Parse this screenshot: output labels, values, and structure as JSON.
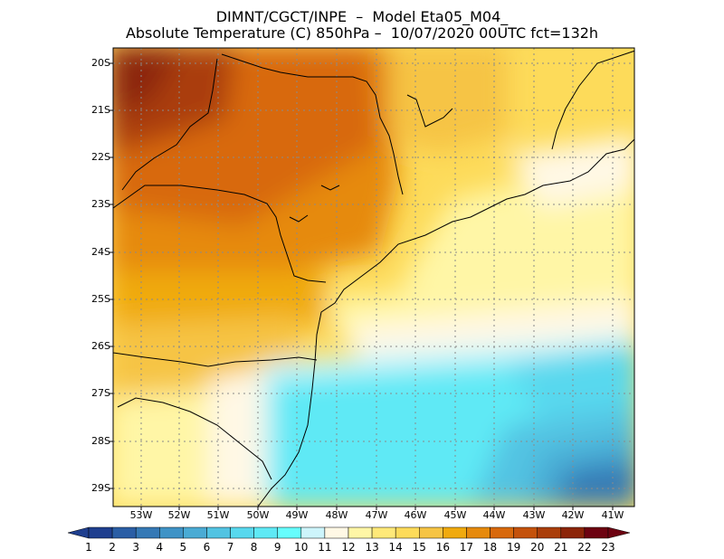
{
  "title_line1": "DIMNT/CGCT/INPE  –  Model Eta05_M04_",
  "title_line2": "Absolute Temperature (C) 850hPa –  10/07/2020 00UTC fct=132h",
  "lat_labels": [
    "20S",
    "21S",
    "22S",
    "23S",
    "24S",
    "25S",
    "26S",
    "27S",
    "28S",
    "29S"
  ],
  "lon_labels": [
    "53W",
    "52W",
    "51W",
    "50W",
    "49W",
    "48W",
    "47W",
    "46W",
    "45W",
    "44W",
    "43W",
    "42W",
    "41W"
  ],
  "colorbar": {
    "labels": [
      "1",
      "2",
      "3",
      "4",
      "5",
      "6",
      "7",
      "8",
      "9",
      "10",
      "11",
      "12",
      "13",
      "14",
      "15",
      "16",
      "17",
      "18",
      "19",
      "20",
      "21",
      "22",
      "23"
    ],
    "colors": [
      "#1f3f8f",
      "#1f3f8f",
      "#2a5ea5",
      "#3579b5",
      "#3f93c6",
      "#4aabd4",
      "#52c3e2",
      "#58d8ee",
      "#5fe9f5",
      "#66fdfd",
      "#cdf5fb",
      "#fff8e5",
      "#fff6a6",
      "#ffe979",
      "#fddb5a",
      "#f6c444",
      "#f0aa0e",
      "#e68a0c",
      "#d8690c",
      "#c4520b",
      "#aa3e0a",
      "#8c2508",
      "#6d0211",
      "#6d0211"
    ]
  }
}
